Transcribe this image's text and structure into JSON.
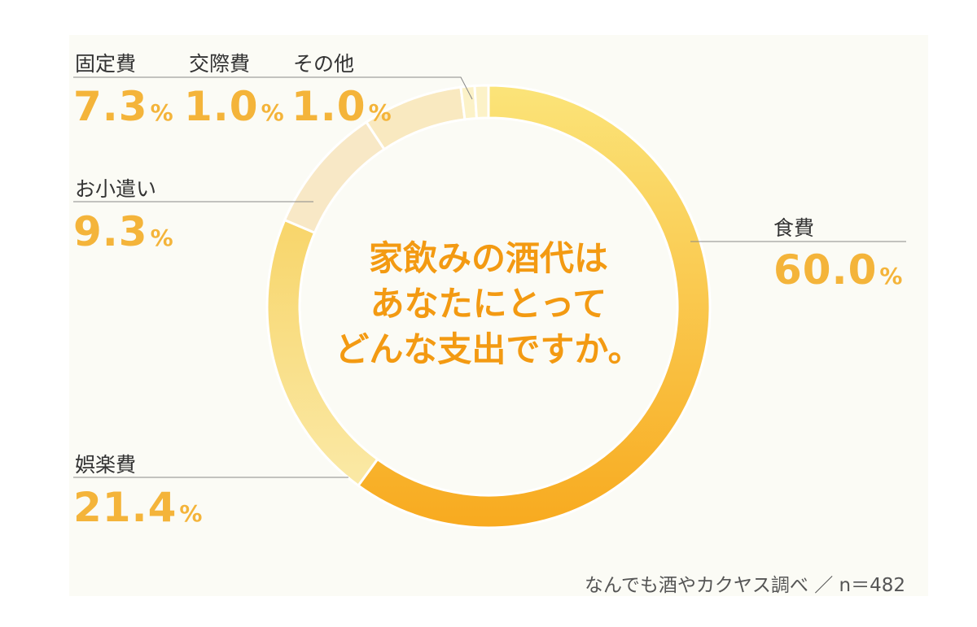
{
  "chart_data": {
    "type": "pie",
    "categories": [
      "食費",
      "娯楽費",
      "お小遣い",
      "固定費",
      "交際費",
      "その他"
    ],
    "values": [
      60.0,
      21.4,
      9.3,
      7.3,
      1.0,
      1.0
    ],
    "value_labels": [
      "60.0",
      "21.4",
      "9.3",
      "7.3",
      "1.0",
      "1.0"
    ],
    "unit": "%",
    "colors": [
      "#f9c53a",
      "#f9d868",
      "#f8e8c6",
      "#f9e9c0",
      "#fcf2c8",
      "#fcf2c8"
    ],
    "title_lines": [
      "家飲みの酒代は",
      "あなたにとって",
      "どんな支出ですか。"
    ],
    "source": "なんでも酒やカクヤス調べ ／ n＝482"
  }
}
